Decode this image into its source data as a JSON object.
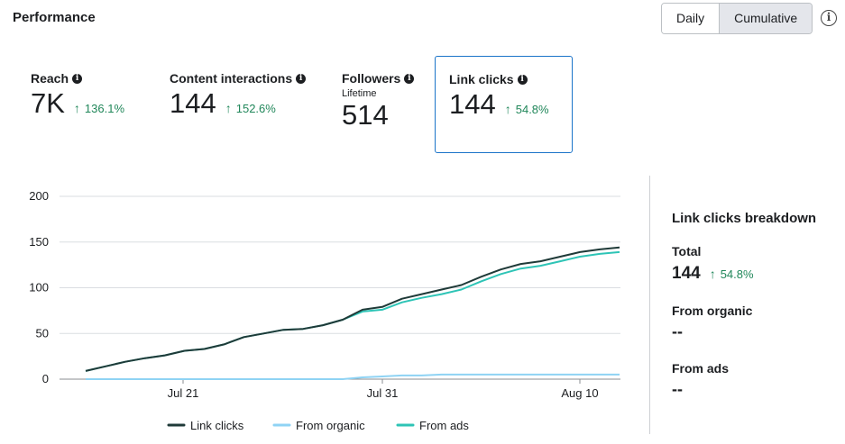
{
  "header": {
    "title": "Performance"
  },
  "toggle": {
    "daily": "Daily",
    "cumulative": "Cumulative"
  },
  "metrics": [
    {
      "label": "Reach",
      "sub": "",
      "value": "7K",
      "delta": "136.1%"
    },
    {
      "label": "Content interactions",
      "sub": "",
      "value": "144",
      "delta": "152.6%"
    },
    {
      "label": "Followers",
      "sub": "Lifetime",
      "value": "514",
      "delta": ""
    },
    {
      "label": "Link clicks",
      "sub": "",
      "value": "144",
      "delta": "54.8%"
    }
  ],
  "breakdown": {
    "title": "Link clicks breakdown",
    "total_label": "Total",
    "total_value": "144",
    "total_delta": "54.8%",
    "organic_label": "From organic",
    "organic_value": "--",
    "ads_label": "From ads",
    "ads_value": "--"
  },
  "chart_data": {
    "type": "line",
    "x_tick_labels": [
      "Jul 21",
      "Jul 31",
      "Aug 10"
    ],
    "ylim": [
      0,
      200
    ],
    "y_ticks": [
      0,
      50,
      100,
      150,
      200
    ],
    "grid": true,
    "legend_placement": "bottom",
    "series": [
      {
        "name": "Link clicks",
        "color": "#1f3a38",
        "values": [
          9,
          14,
          19,
          23,
          26,
          31,
          33,
          38,
          46,
          50,
          54,
          55,
          59,
          65,
          76,
          79,
          88,
          93,
          98,
          103,
          112,
          120,
          126,
          129,
          134,
          139,
          142,
          144
        ]
      },
      {
        "name": "From organic",
        "color": "#8fd3f4",
        "values": [
          0,
          0,
          0,
          0,
          0,
          0,
          0,
          0,
          0,
          0,
          0,
          0,
          0,
          0,
          2,
          3,
          4,
          4,
          5,
          5,
          5,
          5,
          5,
          5,
          5,
          5,
          5,
          5
        ]
      },
      {
        "name": "From ads",
        "color": "#2ec4b6",
        "values": [
          9,
          14,
          19,
          23,
          26,
          31,
          33,
          38,
          46,
          50,
          54,
          55,
          59,
          65,
          74,
          76,
          84,
          89,
          93,
          98,
          107,
          115,
          121,
          124,
          129,
          134,
          137,
          139
        ]
      }
    ]
  }
}
